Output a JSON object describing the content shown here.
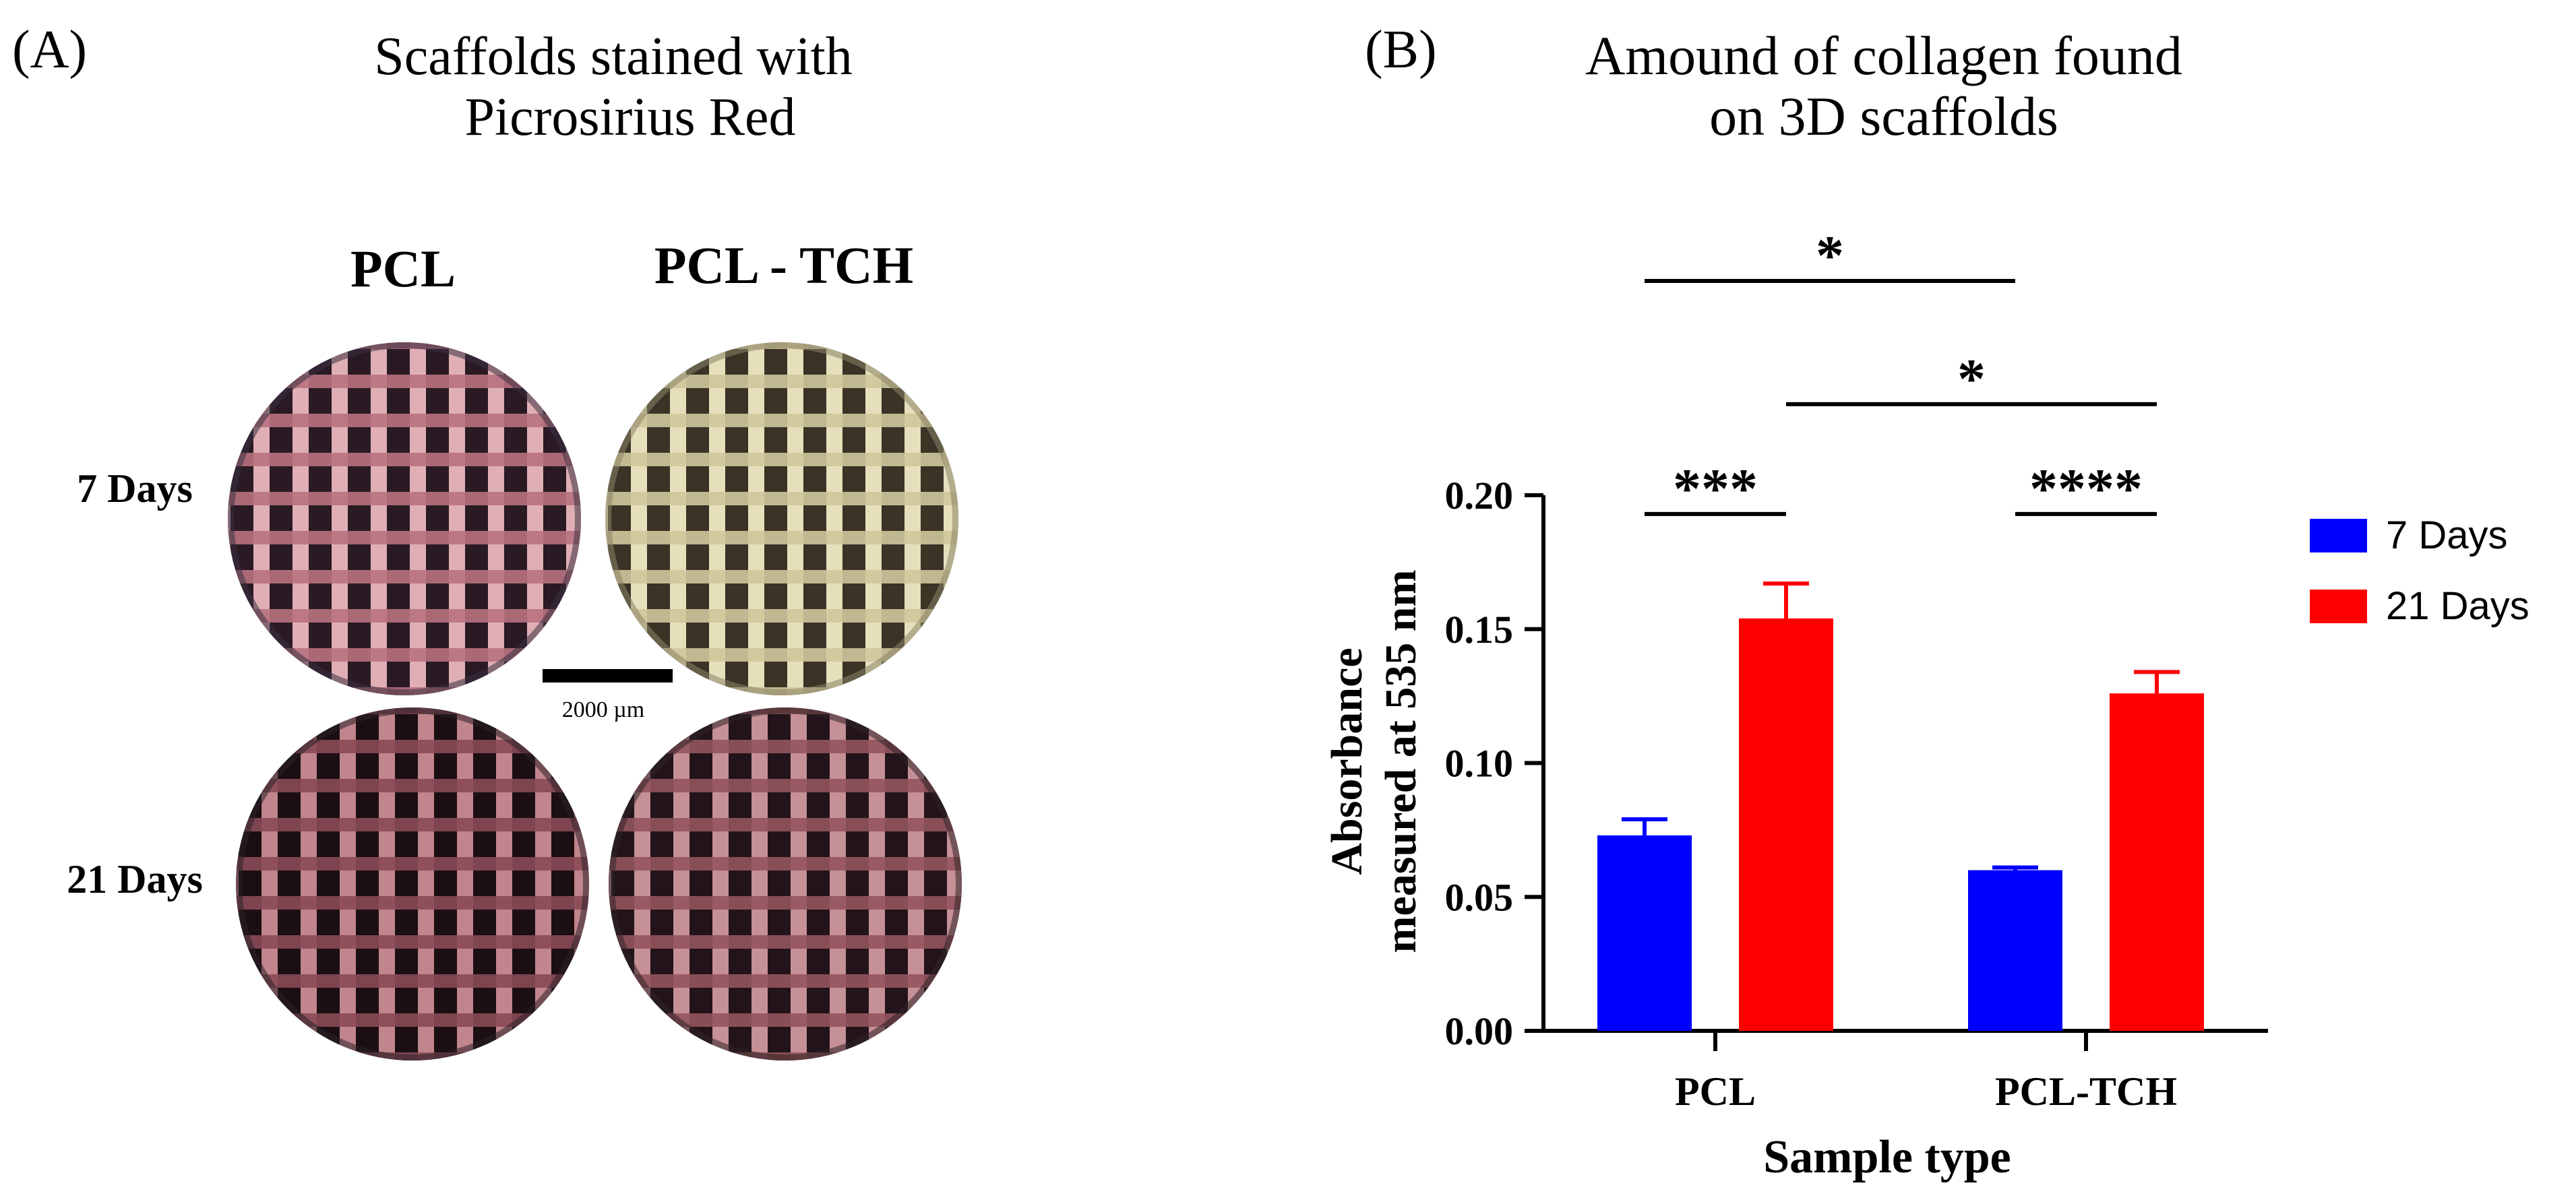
{
  "panel_a": {
    "label": "(A)",
    "title_line1": "Scaffolds stained with",
    "title_line2": "Picrosirius Red",
    "col_headers": [
      "PCL",
      "PCL - TCH"
    ],
    "row_labels": [
      "7 Days",
      "21 Days"
    ],
    "scale_bar_label": "2000 µm",
    "images": [
      {
        "name": "pcl-7-days",
        "tint": "#b9727f",
        "strut": "#efbcc2",
        "hole": "#2a1a24",
        "shadow": "#3b3242"
      },
      {
        "name": "pcl-tch-7-days",
        "tint": "#cfc79c",
        "strut": "#f4eec8",
        "hole": "#3a3326",
        "shadow": "#8a8466"
      },
      {
        "name": "pcl-21-days",
        "tint": "#8a4a55",
        "strut": "#cf8f98",
        "hole": "#1c0f14",
        "shadow": "#2c2228"
      },
      {
        "name": "pcl-tch-21-days",
        "tint": "#93545d",
        "strut": "#d49ba1",
        "hole": "#22141a",
        "shadow": "#302428"
      }
    ]
  },
  "panel_b": {
    "label": "(B)",
    "title_line1": "Amound of collagen found",
    "title_line2": "on 3D scaffolds"
  },
  "chart_data": {
    "type": "bar",
    "title": "Amound of collagen found on 3D scaffolds",
    "xlabel": "Sample type",
    "ylabel_line1": "Absorbance",
    "ylabel_line2": "measured at 535 nm",
    "ylim": [
      0,
      0.2
    ],
    "yticks": [
      0.0,
      0.05,
      0.1,
      0.15,
      0.2
    ],
    "ytick_labels": [
      "0.00",
      "0.05",
      "0.10",
      "0.15",
      "0.20"
    ],
    "categories": [
      "PCL",
      "PCL-TCH"
    ],
    "series": [
      {
        "name": "7 Days",
        "color": "#0000ff",
        "values": [
          0.073,
          0.06
        ],
        "errors": [
          0.006,
          0.001
        ]
      },
      {
        "name": "21 Days",
        "color": "#ff0000",
        "values": [
          0.154,
          0.126
        ],
        "errors": [
          0.013,
          0.008
        ]
      }
    ],
    "legend_position": "right",
    "significance": [
      {
        "label": "***",
        "from": {
          "category": 0,
          "series": 0
        },
        "to": {
          "category": 0,
          "series": 1
        },
        "level": 0.193
      },
      {
        "label": "****",
        "from": {
          "category": 1,
          "series": 0
        },
        "to": {
          "category": 1,
          "series": 1
        },
        "level": 0.193
      },
      {
        "label": "*",
        "from": {
          "category": 0,
          "series": 0
        },
        "to": {
          "category": 1,
          "series": 0
        },
        "level": 0.28
      },
      {
        "label": "*",
        "from": {
          "category": 0,
          "series": 1
        },
        "to": {
          "category": 1,
          "series": 1
        },
        "level": 0.234
      }
    ]
  }
}
